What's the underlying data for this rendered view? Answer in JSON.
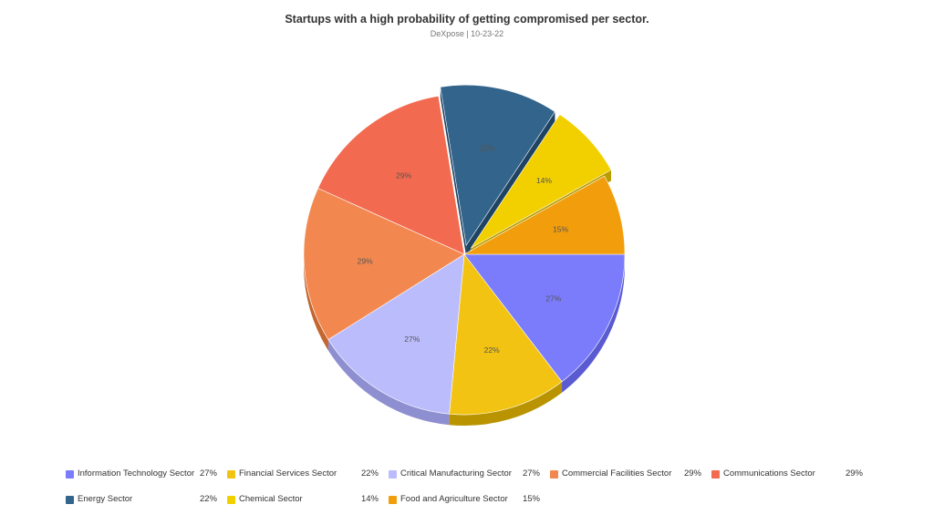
{
  "chart_data": {
    "type": "pie",
    "title": "Startups with a high probability of getting compromised per sector.",
    "subtitle": "DeXpose | 10-23-22",
    "legend_position": "bottom",
    "slices": [
      {
        "label": "Information Technology Sector",
        "value": 27,
        "display": "27%",
        "color": "#7b7cfb",
        "side": "#5a5bd0"
      },
      {
        "label": "Financial Services Sector",
        "value": 22,
        "display": "22%",
        "color": "#f2c312",
        "side": "#b99400"
      },
      {
        "label": "Critical Manufacturing Sector",
        "value": 27,
        "display": "27%",
        "color": "#bbbcfb",
        "side": "#8e8fd0"
      },
      {
        "label": "Commercial Facilities Sector",
        "value": 29,
        "display": "29%",
        "color": "#f2884f",
        "side": "#c4662f"
      },
      {
        "label": "Communications Sector",
        "value": 29,
        "display": "29%",
        "color": "#f26a4f",
        "side": "#c4492f"
      },
      {
        "label": "Energy Sector",
        "value": 22,
        "display": "22%",
        "color": "#33648c",
        "side": "#1f4463",
        "exploded": true
      },
      {
        "label": "Chemical Sector",
        "value": 14,
        "display": "14%",
        "color": "#f2d000",
        "side": "#b89c00",
        "exploded": true
      },
      {
        "label": "Food and Agriculture Sector",
        "value": 15,
        "display": "15%",
        "color": "#f29e0c",
        "side": "#c07a00"
      }
    ]
  }
}
